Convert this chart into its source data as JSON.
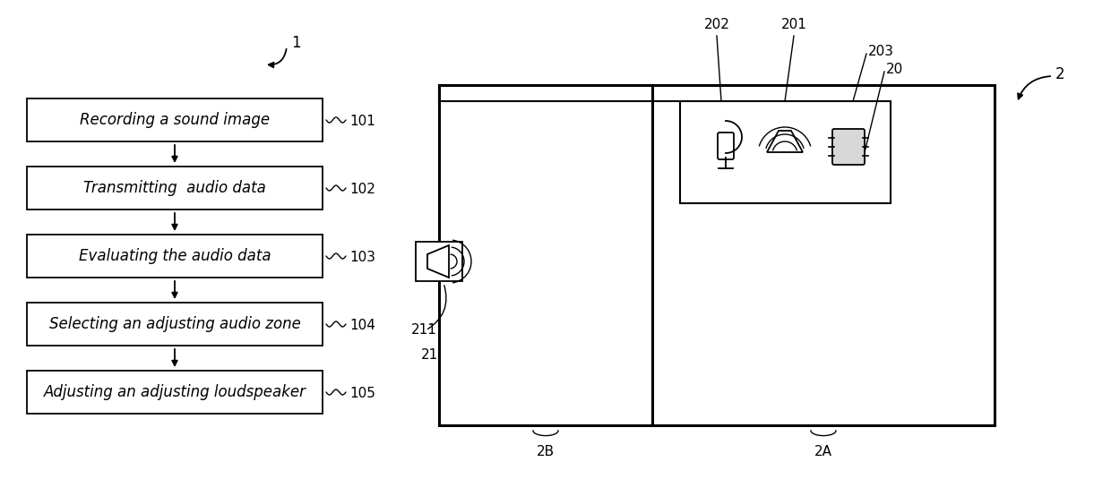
{
  "bg_color": "#ffffff",
  "flow_steps": [
    {
      "label": "Recording a sound image",
      "ref": "101"
    },
    {
      "label": "Transmitting  audio data",
      "ref": "102"
    },
    {
      "label": "Evaluating the audio data",
      "ref": "103"
    },
    {
      "label": "Selecting an adjusting audio zone",
      "ref": "104"
    },
    {
      "label": "Adjusting an adjusting loudspeaker",
      "ref": "105"
    }
  ],
  "font_size_step": 12,
  "font_size_ref": 11
}
